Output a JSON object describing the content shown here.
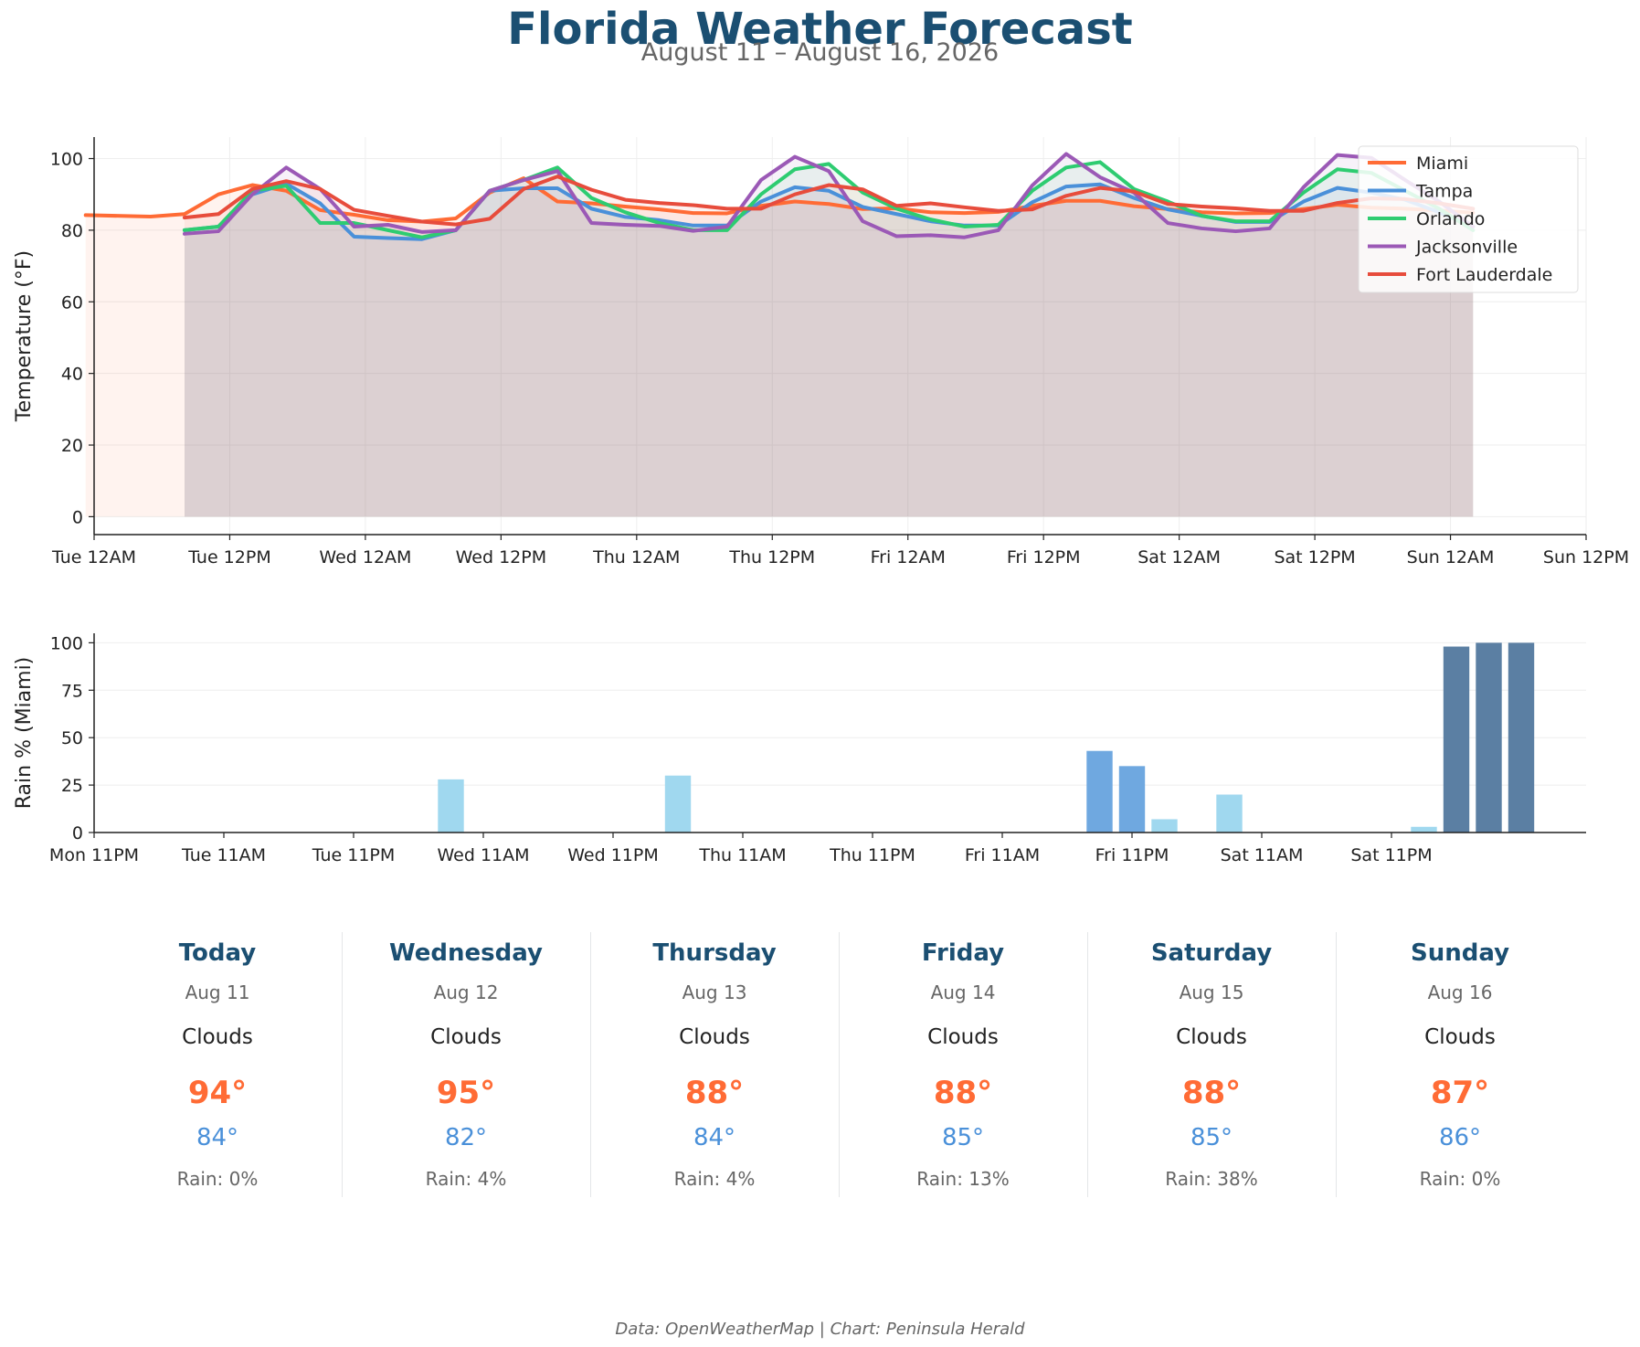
{
  "header": {
    "title": "Florida Weather Forecast",
    "subtitle": "August 11 – August 16, 2026"
  },
  "chart_data": [
    {
      "type": "line",
      "title": "",
      "xlabel": "",
      "ylabel": "Temperature (°F)",
      "ylim": [
        -5,
        106
      ],
      "yticks": [
        0,
        20,
        40,
        60,
        80,
        100
      ],
      "x_ticks": [
        "Tue 12AM",
        "Tue 12PM",
        "Wed 12AM",
        "Wed 12PM",
        "Thu 12AM",
        "Thu 12PM",
        "Fri 12AM",
        "Fri 12PM",
        "Sat 12AM",
        "Sat 12PM",
        "Sun 12AM",
        "Sun 12PM"
      ],
      "x_units": "hours after Tue 12AM, Aug 11",
      "grid": true,
      "legend": "top-right",
      "fill_to_zero": true,
      "series": [
        {
          "name": "Miami",
          "color": "#ff6b35",
          "x": [
            -0.75,
            5,
            8,
            11,
            14,
            17,
            20,
            23,
            26,
            29,
            32,
            35,
            38,
            41,
            44,
            47,
            50,
            53,
            56,
            59,
            62,
            65,
            68,
            71,
            74,
            77,
            80,
            83,
            86,
            89,
            92,
            95,
            98,
            101,
            104,
            107,
            110,
            113,
            116,
            119,
            122
          ],
          "y": [
            84.2,
            83.8,
            84.5,
            90,
            92.6,
            91,
            85.6,
            84.3,
            82.8,
            82.4,
            83.3,
            90.5,
            94.5,
            88,
            87.5,
            86.6,
            85.8,
            84.8,
            84.7,
            86.8,
            88,
            87.3,
            85.9,
            86.1,
            85,
            84.8,
            85.1,
            86.8,
            88.2,
            88.2,
            86.7,
            85.9,
            85,
            84.7,
            84.8,
            85.9,
            87.1,
            86.3,
            86,
            85.5,
            84.9
          ]
        },
        {
          "name": "Tampa",
          "color": "#4a90d9",
          "x": [
            8,
            11,
            14,
            17,
            20,
            23,
            26,
            29,
            32,
            35,
            38,
            41,
            44,
            47,
            50,
            53,
            56,
            59,
            62,
            65,
            68,
            71,
            74,
            77,
            80,
            83,
            86,
            89,
            92,
            95,
            98,
            101,
            104,
            107,
            110,
            113,
            116,
            119,
            122
          ],
          "y": [
            80,
            81,
            90,
            93,
            87.5,
            78.2,
            77.8,
            77.5,
            80,
            91,
            91.7,
            91.7,
            86,
            83.7,
            82.8,
            81.3,
            81.3,
            88,
            92,
            91,
            86.5,
            84.5,
            82.5,
            81.3,
            81.3,
            87.8,
            92.2,
            92.8,
            89,
            85.8,
            84,
            82.3,
            82.3,
            88,
            91.8,
            90.5,
            88.5,
            85,
            81
          ]
        },
        {
          "name": "Orlando",
          "color": "#2ecc71",
          "x": [
            8,
            11,
            14,
            17,
            20,
            23,
            26,
            29,
            32,
            35,
            38,
            41,
            44,
            47,
            50,
            53,
            56,
            59,
            62,
            65,
            68,
            71,
            74,
            77,
            80,
            83,
            86,
            89,
            92,
            95,
            98,
            101,
            104,
            107,
            110,
            113,
            116,
            119,
            122
          ],
          "y": [
            80,
            81,
            91,
            92.4,
            82,
            82,
            80,
            78,
            80,
            91,
            94,
            97.5,
            89,
            85,
            82,
            80,
            80,
            90,
            97,
            98.5,
            90.5,
            86,
            83,
            81,
            81.5,
            91,
            97.5,
            99,
            91.5,
            88,
            84,
            82.5,
            82.5,
            90.5,
            97,
            96,
            91,
            86,
            80
          ]
        },
        {
          "name": "Jacksonville",
          "color": "#9b59b6",
          "x": [
            8,
            11,
            14,
            17,
            20,
            23,
            26,
            29,
            32,
            35,
            38,
            41,
            44,
            47,
            50,
            53,
            56,
            59,
            62,
            65,
            68,
            71,
            74,
            77,
            80,
            83,
            86,
            89,
            92,
            95,
            98,
            101,
            104,
            107,
            110,
            113,
            116,
            119,
            122
          ],
          "y": [
            79,
            79.7,
            90,
            97.5,
            91.5,
            81,
            81.5,
            79.5,
            80,
            91,
            94,
            96.5,
            82,
            81.5,
            81.2,
            79.8,
            81,
            94,
            100.5,
            96.5,
            82.5,
            78.3,
            78.6,
            78,
            80,
            92.5,
            101.3,
            94.8,
            90.5,
            82,
            80.5,
            79.7,
            80.5,
            92,
            101,
            100.2,
            94,
            88,
            81
          ]
        },
        {
          "name": "Fort Lauderdale",
          "color": "#e74c3c",
          "x": [
            8,
            11,
            14,
            17,
            20,
            23,
            26,
            29,
            32,
            35,
            38,
            41,
            44,
            47,
            50,
            53,
            56,
            59,
            62,
            65,
            68,
            71,
            74,
            77,
            80,
            83,
            86,
            89,
            92,
            95,
            98,
            101,
            104,
            107,
            110,
            113,
            116,
            119,
            122
          ],
          "y": [
            83.5,
            84.5,
            91.5,
            93.7,
            91.5,
            85.7,
            84,
            82.4,
            81.6,
            83.2,
            91.5,
            95,
            91.3,
            88.5,
            87.6,
            87,
            86,
            86,
            90,
            92.6,
            91.4,
            86.8,
            87.5,
            86.4,
            85.4,
            85.8,
            89.6,
            91.8,
            90.8,
            87.3,
            86.6,
            86.1,
            85.4,
            85.4,
            87.6,
            88.9,
            88.7,
            87.5,
            86
          ]
        }
      ]
    },
    {
      "type": "bar",
      "title": "",
      "xlabel": "",
      "ylabel": "Rain % (Miami)",
      "ylim": [
        0,
        105
      ],
      "yticks": [
        0,
        25,
        50,
        75,
        100
      ],
      "x_ticks": [
        "Mon 11PM",
        "Tue 11AM",
        "Tue 11PM",
        "Wed 11AM",
        "Wed 11PM",
        "Thu 11AM",
        "Thu 11PM",
        "Fri 11AM",
        "Fri 11PM",
        "Sat 11AM",
        "Sat 11PM"
      ],
      "x_units": "hours after Mon 11PM, Aug 10",
      "grid": true,
      "color_scale": [
        {
          "max": 30,
          "color": "#a0d8ef"
        },
        {
          "max": 60,
          "color": "#6fa8e0"
        },
        {
          "max": 100,
          "color": "#5b7fa3"
        }
      ],
      "x": [
        0,
        3,
        6,
        9,
        12,
        15,
        18,
        21,
        24,
        27,
        30,
        33,
        36,
        39,
        42,
        45,
        48,
        51,
        54,
        57,
        60,
        63,
        66,
        69,
        72,
        75,
        78,
        81,
        84,
        87,
        90,
        93,
        96,
        99,
        102,
        105,
        108,
        111,
        114,
        117,
        120,
        123,
        126,
        129,
        132,
        135
      ],
      "values": [
        0,
        0,
        0,
        0,
        0,
        0,
        0,
        0,
        0,
        0,
        0,
        28,
        0,
        0,
        0,
        0,
        0,
        0,
        30,
        0,
        0,
        0,
        0,
        0,
        0,
        0,
        0,
        0,
        0,
        0,
        0,
        43,
        35,
        7,
        0,
        20,
        0,
        0,
        0,
        0,
        0,
        3,
        98,
        100,
        100,
        0
      ]
    }
  ],
  "daily": [
    {
      "day": "Today",
      "date": "Aug 11",
      "condition": "Clouds",
      "high": "94°",
      "low": "84°",
      "rain": "Rain: 0%"
    },
    {
      "day": "Wednesday",
      "date": "Aug 12",
      "condition": "Clouds",
      "high": "95°",
      "low": "82°",
      "rain": "Rain: 4%"
    },
    {
      "day": "Thursday",
      "date": "Aug 13",
      "condition": "Clouds",
      "high": "88°",
      "low": "84°",
      "rain": "Rain: 4%"
    },
    {
      "day": "Friday",
      "date": "Aug 14",
      "condition": "Clouds",
      "high": "88°",
      "low": "85°",
      "rain": "Rain: 13%"
    },
    {
      "day": "Saturday",
      "date": "Aug 15",
      "condition": "Clouds",
      "high": "88°",
      "low": "85°",
      "rain": "Rain: 38%"
    },
    {
      "day": "Sunday",
      "date": "Aug 16",
      "condition": "Clouds",
      "high": "87°",
      "low": "86°",
      "rain": "Rain: 0%"
    }
  ],
  "footer": "Data: OpenWeatherMap | Chart: Peninsula Herald"
}
